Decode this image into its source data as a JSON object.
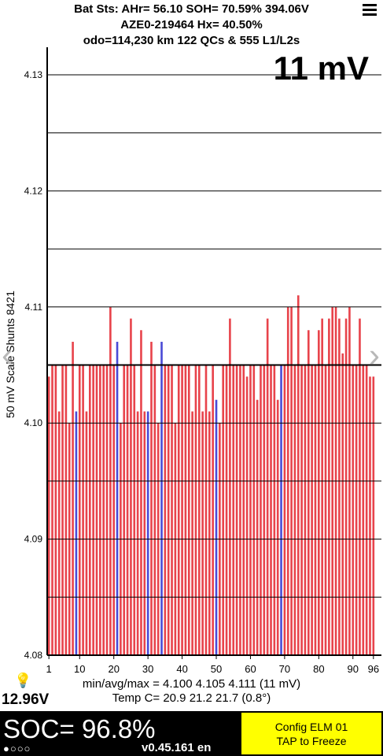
{
  "header": {
    "line1": "Bat Sts:  AHr= 56.10  SOH= 70.59%   394.06V",
    "line2": "AZE0-219464   Hx= 40.50%",
    "line3": "odo=114,230 km 122 QCs & 555 L1/L2s"
  },
  "scale_label": "11 mV",
  "nav": {
    "prev": "‹",
    "next": "›"
  },
  "stats": {
    "line1": "min/avg/max = 4.100 4.105 4.111  (11 mV)",
    "line2": "Temp C= 20.9  21.2  21.7  (0.8°)"
  },
  "voltage_12v": "12.96V",
  "soc": "SOC= 96.8%",
  "status_dots": "●○○○",
  "version": "v0.45.161 en",
  "config_button": {
    "line1": "Config ELM  01",
    "line2": "TAP to Freeze"
  },
  "colors": {
    "bar": "#e8434b",
    "shunt_bar": "#4a4ad6",
    "avg_line": "#000000",
    "soc_bg": "#000000",
    "config_bg": "#ffff00"
  },
  "chart_data": {
    "type": "bar",
    "ylabel": "50 mV Scale  Shunts 8421",
    "ylim": [
      4.08,
      4.13
    ],
    "yticks": [
      "4.08",
      "4.09",
      "4.10",
      "4.11",
      "4.12",
      "4.13"
    ],
    "xticks": [
      "1",
      "10",
      "20",
      "30",
      "40",
      "50",
      "60",
      "70",
      "80",
      "90",
      "96"
    ],
    "grid": true,
    "avg_line": 4.105,
    "categories": [
      1,
      2,
      3,
      4,
      5,
      6,
      7,
      8,
      9,
      10,
      11,
      12,
      13,
      14,
      15,
      16,
      17,
      18,
      19,
      20,
      21,
      22,
      23,
      24,
      25,
      26,
      27,
      28,
      29,
      30,
      31,
      32,
      33,
      34,
      35,
      36,
      37,
      38,
      39,
      40,
      41,
      42,
      43,
      44,
      45,
      46,
      47,
      48,
      49,
      50,
      51,
      52,
      53,
      54,
      55,
      56,
      57,
      58,
      59,
      60,
      61,
      62,
      63,
      64,
      65,
      66,
      67,
      68,
      69,
      70,
      71,
      72,
      73,
      74,
      75,
      76,
      77,
      78,
      79,
      80,
      81,
      82,
      83,
      84,
      85,
      86,
      87,
      88,
      89,
      90,
      91,
      92,
      93,
      94,
      95,
      96
    ],
    "values": [
      4.104,
      4.105,
      4.105,
      4.101,
      4.105,
      4.105,
      4.1,
      4.107,
      4.101,
      4.105,
      4.105,
      4.101,
      4.105,
      4.105,
      4.105,
      4.105,
      4.105,
      4.105,
      4.11,
      4.105,
      4.107,
      4.1,
      4.105,
      4.105,
      4.109,
      4.105,
      4.101,
      4.108,
      4.101,
      4.101,
      4.107,
      4.105,
      4.1,
      4.107,
      4.105,
      4.105,
      4.105,
      4.1,
      4.105,
      4.105,
      4.105,
      4.105,
      4.101,
      4.105,
      4.105,
      4.101,
      4.105,
      4.101,
      4.105,
      4.102,
      4.1,
      4.105,
      4.105,
      4.109,
      4.105,
      4.105,
      4.105,
      4.105,
      4.104,
      4.105,
      4.105,
      4.102,
      4.105,
      4.105,
      4.109,
      4.105,
      4.105,
      4.102,
      4.105,
      4.105,
      4.11,
      4.11,
      4.105,
      4.111,
      4.105,
      4.105,
      4.108,
      4.105,
      4.105,
      4.108,
      4.109,
      4.105,
      4.109,
      4.11,
      4.11,
      4.109,
      4.106,
      4.109,
      4.11,
      4.105,
      4.105,
      4.109,
      4.105,
      4.105,
      4.104,
      4.104
    ],
    "shunt_cells": [
      9,
      21,
      30,
      34,
      50,
      69
    ]
  }
}
